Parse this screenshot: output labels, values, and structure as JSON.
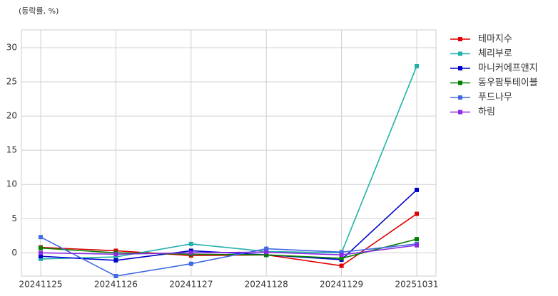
{
  "chart_data": {
    "type": "line",
    "title": "(등락률, %)",
    "categories": [
      "20241125",
      "20241126",
      "20241127",
      "20241128",
      "20241129",
      "20251031"
    ],
    "series": [
      {
        "name": "테마지수",
        "color": "#e00000",
        "values": [
          0.8,
          0.3,
          -0.4,
          -0.3,
          -1.9,
          5.7
        ]
      },
      {
        "name": "체리부로",
        "color": "#20b2aa",
        "values": [
          -0.9,
          -0.6,
          1.3,
          0.2,
          0.0,
          27.3
        ]
      },
      {
        "name": "마니커에프앤지",
        "color": "#0000cd",
        "values": [
          -0.5,
          -1.1,
          0.3,
          -0.3,
          -1.0,
          9.2
        ]
      },
      {
        "name": "동우팜투테이블",
        "color": "#008000",
        "values": [
          0.7,
          0.0,
          -0.2,
          -0.3,
          -0.8,
          2.0
        ]
      },
      {
        "name": "푸드나무",
        "color": "#4169e1",
        "values": [
          2.3,
          -3.4,
          -1.6,
          0.6,
          0.1,
          1.3
        ]
      },
      {
        "name": "하림",
        "color": "#8a2be2",
        "values": [
          0.0,
          -0.2,
          0.0,
          0.1,
          -0.3,
          1.1
        ]
      }
    ],
    "ylim": [
      -3.4,
      32.6
    ],
    "yticks": [
      0,
      5,
      10,
      15,
      20,
      25,
      30
    ],
    "grid": true,
    "legend": "right"
  }
}
